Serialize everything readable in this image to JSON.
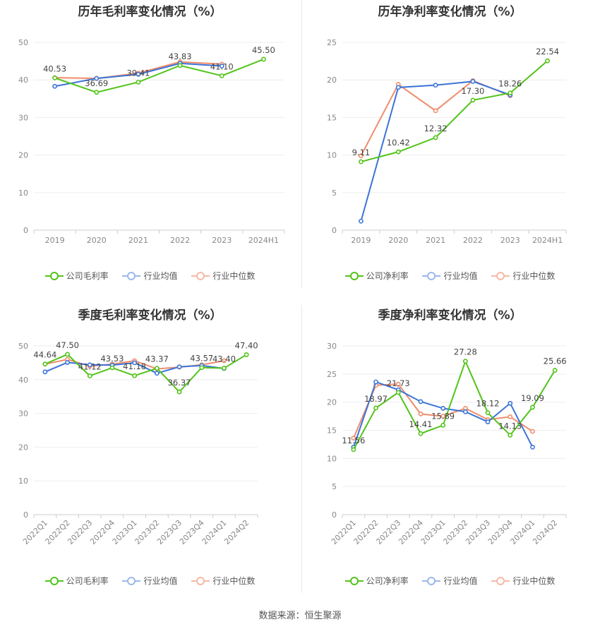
{
  "source": "数据来源：恒生聚源",
  "legend_colors": {
    "company": "#52c41a",
    "industry_avg": "#3b74d8",
    "industry_median": "#f08c6c"
  },
  "chart_data": [
    {
      "type": "line",
      "title": "历年毛利率变化情况（%）",
      "categories": [
        "2019",
        "2020",
        "2021",
        "2022",
        "2023",
        "2024H1"
      ],
      "ylim": [
        0,
        50
      ],
      "yticks": [
        0,
        10,
        20,
        30,
        40,
        50
      ],
      "grid": true,
      "legend_position": "bottom",
      "series": [
        {
          "name": "公司毛利率",
          "color": "#52c41a",
          "values": [
            40.53,
            36.69,
            39.41,
            43.83,
            41.1,
            45.5
          ]
        },
        {
          "name": "行业均值",
          "color": "#3b74d8",
          "values": [
            38.3,
            40.4,
            41.5,
            44.4,
            43.7,
            null
          ]
        },
        {
          "name": "行业中位数",
          "color": "#f08c6c",
          "values": [
            40.6,
            40.4,
            41.8,
            44.8,
            44.2,
            null
          ]
        }
      ],
      "data_labels": [
        "40.53",
        "36.69",
        "39.41",
        "43.83",
        "41.10",
        "45.50"
      ]
    },
    {
      "type": "line",
      "title": "历年净利率变化情况（%）",
      "categories": [
        "2019",
        "2020",
        "2021",
        "2022",
        "2023",
        "2024H1"
      ],
      "ylim": [
        0,
        25
      ],
      "yticks": [
        0,
        5,
        10,
        15,
        20,
        25
      ],
      "grid": true,
      "legend_position": "bottom",
      "series": [
        {
          "name": "公司净利率",
          "color": "#52c41a",
          "values": [
            9.11,
            10.42,
            12.32,
            17.3,
            18.26,
            22.54
          ]
        },
        {
          "name": "行业均值",
          "color": "#3b74d8",
          "values": [
            1.2,
            19.0,
            19.3,
            19.8,
            18.0,
            null
          ]
        },
        {
          "name": "行业中位数",
          "color": "#f08c6c",
          "values": [
            9.9,
            19.4,
            15.9,
            19.9,
            17.9,
            null
          ]
        }
      ],
      "data_labels": [
        "9.11",
        "10.42",
        "12.32",
        "17.30",
        "18.26",
        "22.54"
      ]
    },
    {
      "type": "line",
      "title": "季度毛利率变化情况（%）",
      "categories": [
        "2022Q1",
        "2022Q2",
        "2022Q3",
        "2022Q4",
        "2023Q1",
        "2023Q2",
        "2023Q3",
        "2023Q4",
        "2024Q1",
        "2024Q2"
      ],
      "ylim": [
        0,
        50
      ],
      "yticks": [
        0,
        10,
        20,
        30,
        40,
        50
      ],
      "grid": true,
      "legend_position": "bottom",
      "series": [
        {
          "name": "公司毛利率",
          "color": "#52c41a",
          "values": [
            44.64,
            47.5,
            41.12,
            43.53,
            41.18,
            43.37,
            36.37,
            43.57,
            43.4,
            47.4
          ]
        },
        {
          "name": "行业均值",
          "color": "#3b74d8",
          "values": [
            42.3,
            45.1,
            44.4,
            44.3,
            45.0,
            41.9,
            43.8,
            44.2,
            43.3,
            null
          ]
        },
        {
          "name": "行业中位数",
          "color": "#f08c6c",
          "values": [
            44.6,
            46.0,
            44.0,
            44.6,
            45.6,
            43.2,
            43.7,
            44.4,
            45.6,
            null
          ]
        }
      ],
      "data_labels": [
        "44.64",
        "47.50",
        "41.12",
        "43.53",
        "41.18",
        "43.37",
        "36.37",
        "43.57",
        "43.40",
        "47.40"
      ]
    },
    {
      "type": "line",
      "title": "季度净利率变化情况（%）",
      "categories": [
        "2022Q1",
        "2022Q2",
        "2022Q3",
        "2022Q4",
        "2023Q1",
        "2023Q2",
        "2023Q3",
        "2023Q4",
        "2024Q1",
        "2024Q2"
      ],
      "ylim": [
        0,
        30
      ],
      "yticks": [
        0,
        5,
        10,
        15,
        20,
        25,
        30
      ],
      "grid": true,
      "legend_position": "bottom",
      "series": [
        {
          "name": "公司净利率",
          "color": "#52c41a",
          "values": [
            11.56,
            18.97,
            21.73,
            14.41,
            15.89,
            27.28,
            18.12,
            14.13,
            19.09,
            25.66
          ]
        },
        {
          "name": "行业均值",
          "color": "#3b74d8",
          "values": [
            12.0,
            23.6,
            22.2,
            20.1,
            18.9,
            18.3,
            16.5,
            19.8,
            12.0,
            null
          ]
        },
        {
          "name": "行业中位数",
          "color": "#f08c6c",
          "values": [
            13.6,
            23.0,
            23.2,
            17.9,
            17.5,
            18.9,
            16.9,
            17.4,
            14.8,
            null
          ]
        }
      ],
      "data_labels": [
        "11.56",
        "18.97",
        "21.73",
        "14.41",
        "15.89",
        "27.28",
        "18.12",
        "14.13",
        "19.09",
        "25.66"
      ]
    }
  ]
}
